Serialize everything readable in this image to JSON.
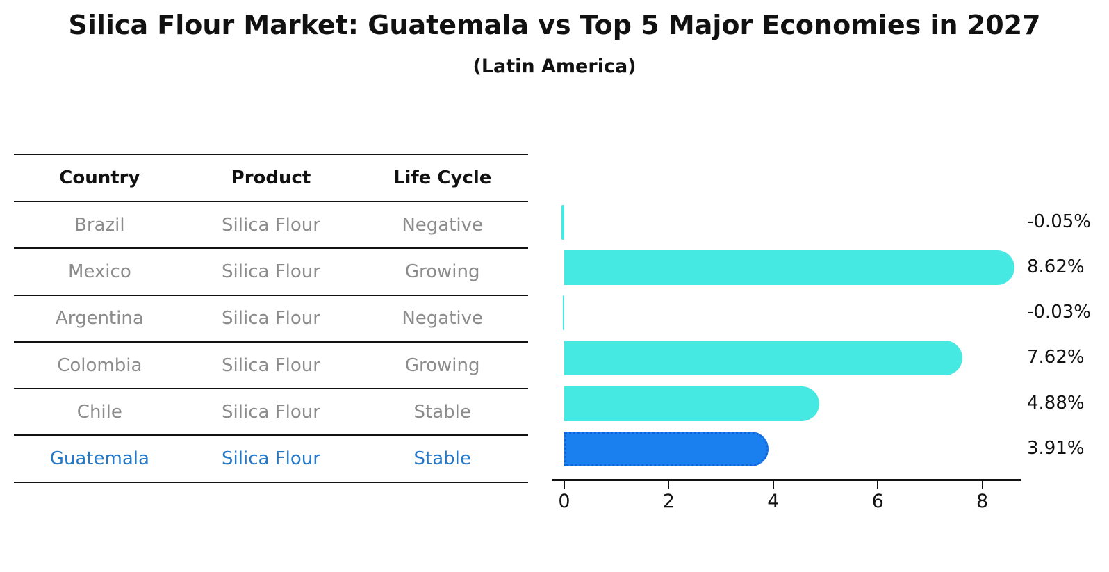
{
  "title": "Silica Flour Market: Guatemala vs Top 5 Major Economies in 2027",
  "subtitle": "(Latin America)",
  "table": {
    "columns": [
      "Country",
      "Product",
      "Life Cycle"
    ],
    "rows": [
      {
        "country": "Brazil",
        "product": "Silica Flour",
        "life_cycle": "Negative",
        "highlight": false
      },
      {
        "country": "Mexico",
        "product": "Silica Flour",
        "life_cycle": "Growing",
        "highlight": false
      },
      {
        "country": "Argentina",
        "product": "Silica Flour",
        "life_cycle": "Negative",
        "highlight": false
      },
      {
        "country": "Colombia",
        "product": "Silica Flour",
        "life_cycle": "Growing",
        "highlight": false
      },
      {
        "country": "Chile",
        "product": "Silica Flour",
        "life_cycle": "Stable",
        "highlight": false
      },
      {
        "country": "Guatemala",
        "product": "Silica Flour",
        "life_cycle": "Stable",
        "highlight": true
      }
    ]
  },
  "chart_data": {
    "type": "bar",
    "orientation": "horizontal",
    "title": "Silica Flour Market: Guatemala vs Top 5 Major Economies in 2027 (Latin America)",
    "categories": [
      "Brazil",
      "Mexico",
      "Argentina",
      "Colombia",
      "Chile",
      "Guatemala"
    ],
    "values": [
      -0.05,
      8.62,
      -0.03,
      7.62,
      4.88,
      3.91
    ],
    "value_labels": [
      "-0.05%",
      "8.62%",
      "-0.03%",
      "7.62%",
      "4.88%",
      "3.91%"
    ],
    "x_ticks": [
      0,
      2,
      4,
      6,
      8
    ],
    "xlim": [
      -0.25,
      8.75
    ],
    "grid": false,
    "legend": false,
    "highlight_index": 5
  },
  "colors": {
    "bar_default": "#46E8E2",
    "bar_highlight": "#1A80F0",
    "bar_highlight_edge": "#1063D8",
    "highlight_text": "#2478C8",
    "muted_text": "#8C8C8C",
    "heading_text": "#111111",
    "axis": "#111111"
  }
}
